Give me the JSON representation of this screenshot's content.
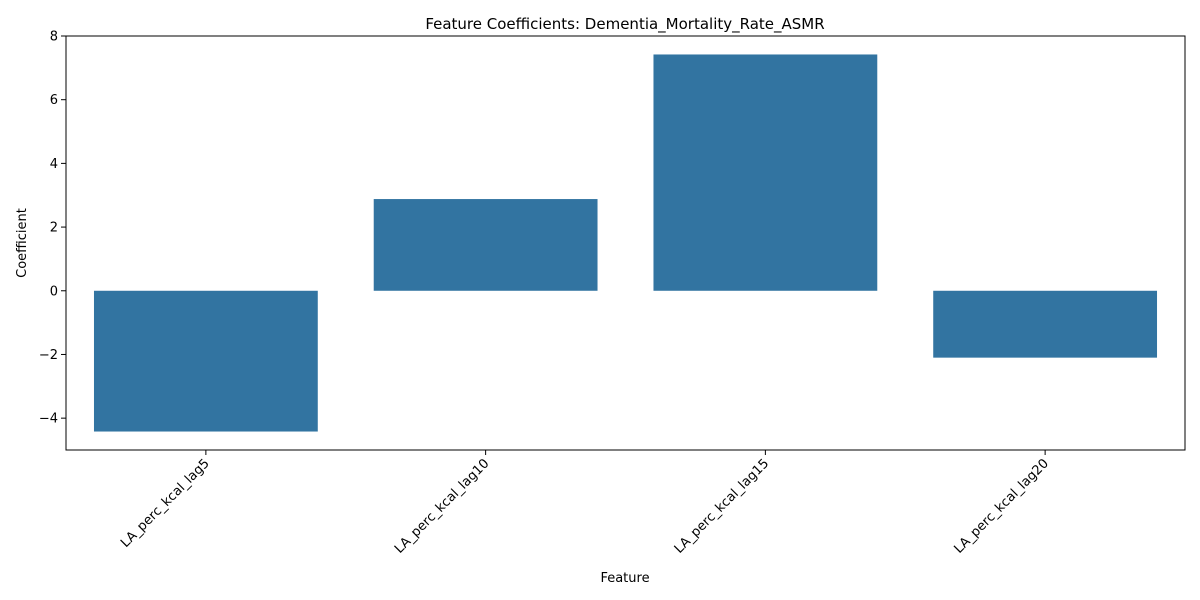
{
  "chart_data": {
    "type": "bar",
    "title": "Feature Coefficients: Dementia_Mortality_Rate_ASMR",
    "xlabel": "Feature",
    "ylabel": "Coefficient",
    "categories": [
      "LA_perc_kcal_lag5",
      "LA_perc_kcal_lag10",
      "LA_perc_kcal_lag15",
      "LA_perc_kcal_lag20"
    ],
    "values": [
      -4.42,
      2.88,
      7.42,
      -2.1
    ],
    "ylim": [
      -5.0,
      8.0
    ],
    "yticks": [
      -4,
      -2,
      0,
      2,
      4,
      6,
      8
    ],
    "grid": false,
    "legend": "none",
    "bar_color": "#3274a1",
    "x_tick_rotation": 45
  }
}
